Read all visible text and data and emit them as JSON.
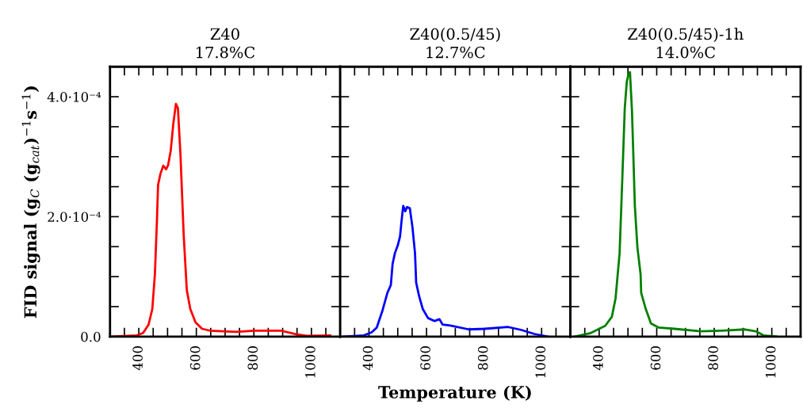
{
  "chart_data": [
    {
      "type": "line",
      "title": "Z40\n17.8%C",
      "ylabel": "FID signal (g$_{C}$ (g$_{cat}$)$^{−1}$s$^{−1}$)",
      "series": [
        {
          "color": "#ff0000",
          "x": [
            300,
            393,
            415,
            434,
            447,
            456,
            463,
            467,
            475,
            485,
            495,
            502,
            511,
            520,
            529,
            536,
            545,
            556,
            567,
            579,
            597,
            620,
            647,
            738,
            802,
            893,
            947,
            984,
            1065
          ],
          "values": [
            0,
            2e-06,
            6e-06,
            2e-05,
            4.6e-05,
            0.000104,
            0.000192,
            0.000253,
            0.000271,
            0.000285,
            0.000279,
            0.000286,
            0.00031,
            0.000355,
            0.000388,
            0.000381,
            0.000302,
            0.00017,
            7.7e-05,
            4.6e-05,
            2.4e-05,
            1.3e-05,
            1e-05,
            8e-06,
            1e-05,
            1e-05,
            4e-06,
            1.3e-06,
            2e-06
          ]
        }
      ],
      "xlim": [
        300,
        1100
      ],
      "ylim": [
        0,
        0.00045
      ],
      "xticks": [
        {
          "value": 350,
          "label": null
        },
        {
          "value": 400,
          "label": "400"
        },
        {
          "value": 450,
          "label": null
        },
        {
          "value": 500,
          "label": null
        },
        {
          "value": 550,
          "label": null
        },
        {
          "value": 600,
          "label": "600"
        },
        {
          "value": 650,
          "label": null
        },
        {
          "value": 700,
          "label": null
        },
        {
          "value": 750,
          "label": null
        },
        {
          "value": 800,
          "label": "800"
        },
        {
          "value": 850,
          "label": null
        },
        {
          "value": 900,
          "label": null
        },
        {
          "value": 950,
          "label": null
        },
        {
          "value": 1000,
          "label": "1000"
        },
        {
          "value": 1050,
          "label": null
        }
      ],
      "yticks": [
        {
          "value": 0,
          "label": "0.0"
        },
        {
          "value": 5e-05,
          "label": null
        },
        {
          "value": 0.0001,
          "label": null
        },
        {
          "value": 0.00015,
          "label": null
        },
        {
          "value": 0.0002,
          "label": "2.0·10⁻⁴"
        },
        {
          "value": 0.00025,
          "label": null
        },
        {
          "value": 0.0003,
          "label": null
        },
        {
          "value": 0.00035,
          "label": null
        },
        {
          "value": 0.0004,
          "label": "4.0·10⁻⁴"
        }
      ]
    },
    {
      "type": "line",
      "title": "Z40(0.5/45)\n12.7%C",
      "xlabel": "Temperature (K)",
      "tick_labels": "x",
      "series": [
        {
          "color": "#0000ff",
          "x": [
            310,
            382,
            409,
            427,
            446,
            464,
            476,
            482,
            490,
            500,
            508,
            513,
            519,
            526,
            532,
            542,
            551,
            560,
            564,
            574,
            587,
            605,
            628,
            645,
            656,
            683,
            747,
            802,
            884,
            930,
            975,
            1021
          ],
          "values": [
            0,
            2e-06,
            7e-06,
            1.5e-05,
            4.2e-05,
            7.3e-05,
            8.6e-05,
            0.000121,
            0.000139,
            0.000152,
            0.000167,
            0.000192,
            0.000218,
            0.000209,
            0.000216,
            0.000214,
            0.000183,
            0.000139,
            9e-05,
            6.8e-05,
            4.6e-05,
            3.1e-05,
            2.6e-05,
            2.9e-05,
            2e-05,
            1.85e-05,
            1.2e-05,
            1.3e-05,
            1.6e-05,
            1.1e-05,
            4.4e-06,
            0
          ]
        }
      ],
      "xlim": [
        300,
        1100
      ],
      "ylim": [
        0,
        0.00045
      ],
      "xticks": [
        {
          "value": 350,
          "label": null
        },
        {
          "value": 400,
          "label": "400"
        },
        {
          "value": 450,
          "label": null
        },
        {
          "value": 500,
          "label": null
        },
        {
          "value": 550,
          "label": null
        },
        {
          "value": 600,
          "label": "600"
        },
        {
          "value": 650,
          "label": null
        },
        {
          "value": 700,
          "label": null
        },
        {
          "value": 750,
          "label": null
        },
        {
          "value": 800,
          "label": "800"
        },
        {
          "value": 850,
          "label": null
        },
        {
          "value": 900,
          "label": null
        },
        {
          "value": 950,
          "label": null
        },
        {
          "value": 1000,
          "label": "1000"
        },
        {
          "value": 1050,
          "label": null
        }
      ],
      "yticks": [
        {
          "value": 0,
          "label": null
        },
        {
          "value": 5e-05,
          "label": null
        },
        {
          "value": 0.0001,
          "label": null
        },
        {
          "value": 0.00015,
          "label": null
        },
        {
          "value": 0.0002,
          "label": null
        },
        {
          "value": 0.00025,
          "label": null
        },
        {
          "value": 0.0003,
          "label": null
        },
        {
          "value": 0.00035,
          "label": null
        },
        {
          "value": 0.0004,
          "label": null
        }
      ]
    },
    {
      "type": "line",
      "title": "Z40(0.5/45)-1h\n14.0%C",
      "tick_labels": "x",
      "series": [
        {
          "color": "#008000",
          "x": [
            315,
            371,
            421,
            444,
            457,
            471,
            480,
            489,
            496,
            502,
            507,
            514,
            518,
            524,
            533,
            544,
            546,
            562,
            580,
            607,
            662,
            753,
            825,
            907,
            944,
            971,
            1016
          ],
          "values": [
            0,
            6e-06,
            1.8e-05,
            3.3e-05,
            6.4e-05,
            0.000139,
            0.000258,
            0.000381,
            0.000425,
            0.000438,
            0.000441,
            0.000377,
            0.000315,
            0.000218,
            0.000148,
            0.000104,
            7.3e-05,
            4.6e-05,
            2.2e-05,
            1.5e-05,
            1.3e-05,
            9e-06,
            1e-05,
            1.2e-05,
            9e-06,
            2e-06,
            0
          ]
        }
      ],
      "xlim": [
        300,
        1100
      ],
      "ylim": [
        0,
        0.00045
      ],
      "xticks": [
        {
          "value": 350,
          "label": null
        },
        {
          "value": 400,
          "label": "400"
        },
        {
          "value": 450,
          "label": null
        },
        {
          "value": 500,
          "label": null
        },
        {
          "value": 550,
          "label": null
        },
        {
          "value": 600,
          "label": "600"
        },
        {
          "value": 650,
          "label": null
        },
        {
          "value": 700,
          "label": null
        },
        {
          "value": 750,
          "label": null
        },
        {
          "value": 800,
          "label": "800"
        },
        {
          "value": 850,
          "label": null
        },
        {
          "value": 900,
          "label": null
        },
        {
          "value": 950,
          "label": null
        },
        {
          "value": 1000,
          "label": "1000"
        },
        {
          "value": 1050,
          "label": null
        }
      ],
      "yticks": [
        {
          "value": 0,
          "label": null
        },
        {
          "value": 5e-05,
          "label": null
        },
        {
          "value": 0.0001,
          "label": null
        },
        {
          "value": 0.00015,
          "label": null
        },
        {
          "value": 0.0002,
          "label": null
        },
        {
          "value": 0.00025,
          "label": null
        },
        {
          "value": 0.0003,
          "label": null
        },
        {
          "value": 0.00035,
          "label": null
        },
        {
          "value": 0.0004,
          "label": null
        }
      ]
    }
  ]
}
